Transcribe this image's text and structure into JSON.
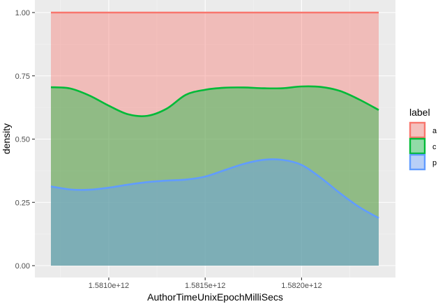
{
  "chart_data": {
    "type": "area",
    "stacked": true,
    "position": "fill",
    "xlabel": "AuthorTimeUnixEpochMilliSecs",
    "ylabel": "density",
    "xlim": [
      1580700000000,
      1582400000000
    ],
    "ylim": [
      0,
      1
    ],
    "x_ticks": [
      1581000000000,
      1581500000000,
      1582000000000
    ],
    "x_tick_labels": [
      "1.5810e+12",
      "1.5815e+12",
      "1.5820e+12"
    ],
    "y_ticks": [
      0,
      0.25,
      0.5,
      0.75,
      1
    ],
    "y_tick_labels": [
      "0.00",
      "0.25",
      "0.50",
      "0.75",
      "1.00"
    ],
    "grid": true,
    "legend_title": "label",
    "legend_position": "right",
    "series": [
      {
        "name": "a",
        "color": "#f8766d",
        "x": [
          1580700000000,
          1580800000000,
          1580900000000,
          1581000000000,
          1581100000000,
          1581200000000,
          1581300000000,
          1581400000000,
          1581500000000,
          1581600000000,
          1581700000000,
          1581800000000,
          1581900000000,
          1582000000000,
          1582100000000,
          1582200000000,
          1582300000000,
          1582400000000
        ],
        "upper": [
          1,
          1,
          1,
          1,
          1,
          1,
          1,
          1,
          1,
          1,
          1,
          1,
          1,
          1,
          1,
          1,
          1,
          1
        ]
      },
      {
        "name": "c",
        "color": "#00ba38",
        "x": [
          1580700000000,
          1580800000000,
          1580900000000,
          1581000000000,
          1581100000000,
          1581200000000,
          1581300000000,
          1581400000000,
          1581500000000,
          1581600000000,
          1581700000000,
          1581800000000,
          1581900000000,
          1582000000000,
          1582100000000,
          1582200000000,
          1582300000000,
          1582400000000
        ],
        "upper": [
          0.705,
          0.7,
          0.672,
          0.632,
          0.598,
          0.592,
          0.62,
          0.675,
          0.695,
          0.703,
          0.704,
          0.701,
          0.701,
          0.708,
          0.706,
          0.69,
          0.656,
          0.615
        ]
      },
      {
        "name": "p",
        "color": "#619cff",
        "x": [
          1580700000000,
          1580800000000,
          1580900000000,
          1581000000000,
          1581100000000,
          1581200000000,
          1581300000000,
          1581400000000,
          1581500000000,
          1581600000000,
          1581700000000,
          1581800000000,
          1581900000000,
          1582000000000,
          1582100000000,
          1582200000000,
          1582300000000,
          1582400000000
        ],
        "upper": [
          0.313,
          0.301,
          0.3,
          0.308,
          0.32,
          0.33,
          0.336,
          0.34,
          0.352,
          0.377,
          0.402,
          0.418,
          0.418,
          0.398,
          0.347,
          0.286,
          0.231,
          0.188
        ]
      }
    ]
  }
}
